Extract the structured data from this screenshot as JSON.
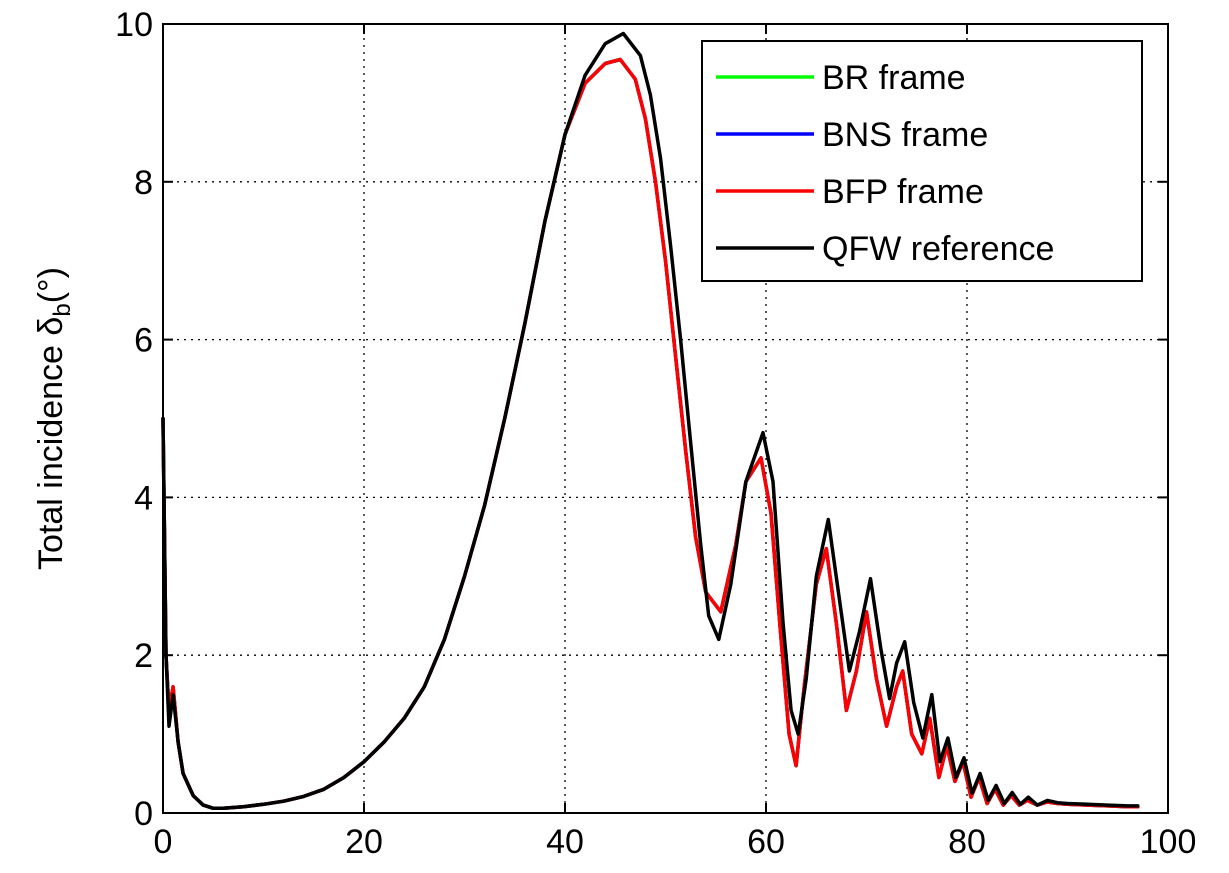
{
  "chart_data": {
    "type": "line",
    "title": "",
    "xlabel": "",
    "ylabel": "Total incidence δ_b(°)",
    "ylabel_parts": {
      "main": "Total incidence ",
      "symbol": "δ",
      "subscript": "b",
      "unit": "(°)"
    },
    "xlim": [
      0,
      100
    ],
    "ylim": [
      0,
      10
    ],
    "x_ticks": [
      0,
      20,
      40,
      60,
      80,
      100
    ],
    "y_ticks": [
      0,
      2,
      4,
      6,
      8,
      10
    ],
    "x_tick_labels": [
      "0",
      "20",
      "40",
      "60",
      "80",
      "100"
    ],
    "y_tick_labels": [
      "0",
      "2",
      "4",
      "6",
      "8",
      "10"
    ],
    "grid": true,
    "legend_position": "top-right",
    "series": [
      {
        "name": "BR frame",
        "color": "#00ff00",
        "x": [
          0,
          0.3,
          0.6,
          1,
          1.5,
          2,
          3,
          4,
          5,
          6,
          8,
          10,
          12,
          14,
          16,
          18,
          20,
          22,
          24,
          26,
          28,
          30,
          32,
          34,
          36,
          38,
          40,
          42,
          44,
          45.5,
          47,
          48,
          49,
          50,
          51,
          52,
          53,
          54,
          55.5,
          57,
          58,
          59.5,
          60.5,
          61.5,
          62.3,
          63,
          63.8,
          65,
          66,
          67,
          68,
          69,
          70,
          71,
          72,
          73,
          73.6,
          74.5,
          75.5,
          76.3,
          77.2,
          78,
          78.8,
          79.6,
          80.4,
          81.2,
          82,
          82.8,
          83.6,
          84.4,
          85.2,
          86,
          87,
          88,
          89,
          90,
          92,
          94,
          96,
          97
        ],
        "y": [
          5.0,
          2.0,
          1.3,
          1.6,
          0.9,
          0.5,
          0.22,
          0.1,
          0.06,
          0.06,
          0.08,
          0.11,
          0.15,
          0.21,
          0.3,
          0.45,
          0.65,
          0.9,
          1.2,
          1.6,
          2.2,
          3.0,
          3.9,
          5.0,
          6.2,
          7.5,
          8.6,
          9.25,
          9.5,
          9.55,
          9.3,
          8.8,
          8.0,
          7.0,
          5.8,
          4.6,
          3.5,
          2.8,
          2.55,
          3.4,
          4.2,
          4.5,
          3.8,
          2.2,
          1.0,
          0.6,
          1.6,
          2.9,
          3.35,
          2.4,
          1.3,
          1.8,
          2.55,
          1.7,
          1.1,
          1.6,
          1.8,
          1.0,
          0.75,
          1.2,
          0.45,
          0.85,
          0.4,
          0.65,
          0.2,
          0.45,
          0.12,
          0.3,
          0.1,
          0.22,
          0.1,
          0.16,
          0.1,
          0.14,
          0.12,
          0.11,
          0.1,
          0.09,
          0.08,
          0.08
        ]
      },
      {
        "name": "BNS frame",
        "color": "#0000ff",
        "x": [
          0,
          0.3,
          0.6,
          1,
          1.5,
          2,
          3,
          4,
          5,
          6,
          8,
          10,
          12,
          14,
          16,
          18,
          20,
          22,
          24,
          26,
          28,
          30,
          32,
          34,
          36,
          38,
          40,
          42,
          44,
          45.5,
          47,
          48,
          49,
          50,
          51,
          52,
          53,
          54,
          55.5,
          57,
          58,
          59.5,
          60.5,
          61.5,
          62.3,
          63,
          63.8,
          65,
          66,
          67,
          68,
          69,
          70,
          71,
          72,
          73,
          73.6,
          74.5,
          75.5,
          76.3,
          77.2,
          78,
          78.8,
          79.6,
          80.4,
          81.2,
          82,
          82.8,
          83.6,
          84.4,
          85.2,
          86,
          87,
          88,
          89,
          90,
          92,
          94,
          96,
          97
        ],
        "y": [
          5.0,
          2.0,
          1.3,
          1.6,
          0.9,
          0.5,
          0.22,
          0.1,
          0.06,
          0.06,
          0.08,
          0.11,
          0.15,
          0.21,
          0.3,
          0.45,
          0.65,
          0.9,
          1.2,
          1.6,
          2.2,
          3.0,
          3.9,
          5.0,
          6.2,
          7.5,
          8.6,
          9.25,
          9.5,
          9.55,
          9.3,
          8.8,
          8.0,
          7.0,
          5.8,
          4.6,
          3.5,
          2.8,
          2.55,
          3.4,
          4.2,
          4.5,
          3.8,
          2.2,
          1.0,
          0.6,
          1.6,
          2.9,
          3.35,
          2.4,
          1.3,
          1.8,
          2.55,
          1.7,
          1.1,
          1.6,
          1.8,
          1.0,
          0.75,
          1.2,
          0.45,
          0.85,
          0.4,
          0.65,
          0.2,
          0.45,
          0.12,
          0.3,
          0.1,
          0.22,
          0.1,
          0.16,
          0.1,
          0.14,
          0.12,
          0.11,
          0.1,
          0.09,
          0.08,
          0.08
        ]
      },
      {
        "name": "BFP frame",
        "color": "#ff0000",
        "x": [
          0,
          0.3,
          0.6,
          1,
          1.5,
          2,
          3,
          4,
          5,
          6,
          8,
          10,
          12,
          14,
          16,
          18,
          20,
          22,
          24,
          26,
          28,
          30,
          32,
          34,
          36,
          38,
          40,
          42,
          44,
          45.5,
          47,
          48,
          49,
          50,
          51,
          52,
          53,
          54,
          55.5,
          57,
          58,
          59.5,
          60.5,
          61.5,
          62.3,
          63,
          63.8,
          65,
          66,
          67,
          68,
          69,
          70,
          71,
          72,
          73,
          73.6,
          74.5,
          75.5,
          76.3,
          77.2,
          78,
          78.8,
          79.6,
          80.4,
          81.2,
          82,
          82.8,
          83.6,
          84.4,
          85.2,
          86,
          87,
          88,
          89,
          90,
          92,
          94,
          96,
          97
        ],
        "y": [
          5.0,
          2.0,
          1.3,
          1.6,
          0.9,
          0.5,
          0.22,
          0.1,
          0.06,
          0.06,
          0.08,
          0.11,
          0.15,
          0.21,
          0.3,
          0.45,
          0.65,
          0.9,
          1.2,
          1.6,
          2.2,
          3.0,
          3.9,
          5.0,
          6.2,
          7.5,
          8.6,
          9.25,
          9.5,
          9.55,
          9.3,
          8.8,
          8.0,
          7.0,
          5.8,
          4.6,
          3.5,
          2.8,
          2.55,
          3.4,
          4.2,
          4.5,
          3.8,
          2.2,
          1.0,
          0.6,
          1.6,
          2.9,
          3.35,
          2.4,
          1.3,
          1.8,
          2.55,
          1.7,
          1.1,
          1.6,
          1.8,
          1.0,
          0.75,
          1.2,
          0.45,
          0.85,
          0.4,
          0.65,
          0.2,
          0.45,
          0.12,
          0.3,
          0.1,
          0.22,
          0.1,
          0.16,
          0.1,
          0.14,
          0.12,
          0.11,
          0.1,
          0.09,
          0.08,
          0.08
        ]
      },
      {
        "name": "QFW reference",
        "color": "#000000",
        "x": [
          0,
          0.3,
          0.6,
          1,
          1.5,
          2,
          3,
          4,
          5,
          6,
          8,
          10,
          12,
          14,
          16,
          18,
          20,
          22,
          24,
          26,
          28,
          30,
          32,
          34,
          36,
          38,
          40,
          42,
          44,
          45.8,
          47.5,
          48.5,
          49.5,
          50.5,
          51.5,
          52.5,
          53.5,
          54.3,
          55.3,
          56.5,
          58,
          59.7,
          60.7,
          61.7,
          62.5,
          63.2,
          64,
          65,
          66.2,
          67.2,
          68.3,
          69.3,
          70.4,
          71.4,
          72.3,
          73,
          73.8,
          74.7,
          75.6,
          76.5,
          77.3,
          78.1,
          78.9,
          79.7,
          80.5,
          81.3,
          82.1,
          82.9,
          83.7,
          84.5,
          85.3,
          86.1,
          87,
          88,
          89,
          90,
          92,
          94,
          96,
          97
        ],
        "y": [
          5.0,
          2.0,
          1.1,
          1.5,
          0.9,
          0.5,
          0.22,
          0.1,
          0.06,
          0.06,
          0.08,
          0.11,
          0.15,
          0.21,
          0.3,
          0.45,
          0.65,
          0.9,
          1.2,
          1.6,
          2.2,
          3.0,
          3.9,
          5.0,
          6.2,
          7.5,
          8.6,
          9.35,
          9.75,
          9.88,
          9.6,
          9.1,
          8.3,
          7.2,
          6.0,
          4.7,
          3.4,
          2.5,
          2.2,
          2.9,
          4.2,
          4.82,
          4.2,
          2.4,
          1.3,
          1.0,
          1.7,
          3.0,
          3.72,
          2.8,
          1.8,
          2.3,
          2.97,
          2.1,
          1.45,
          1.9,
          2.17,
          1.4,
          0.95,
          1.5,
          0.65,
          0.95,
          0.45,
          0.7,
          0.25,
          0.5,
          0.16,
          0.35,
          0.12,
          0.26,
          0.11,
          0.2,
          0.1,
          0.16,
          0.13,
          0.12,
          0.11,
          0.1,
          0.09,
          0.09
        ]
      }
    ]
  }
}
